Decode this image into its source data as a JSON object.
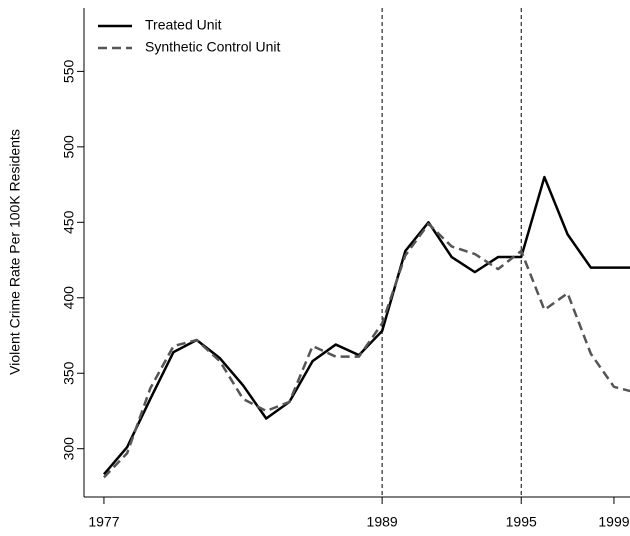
{
  "chart_data": {
    "type": "line",
    "ylabel": "Violent Crime Rate Per 100K Residents",
    "x": [
      1977,
      1978,
      1979,
      1980,
      1981,
      1982,
      1983,
      1984,
      1985,
      1986,
      1987,
      1988,
      1989,
      1990,
      1991,
      1992,
      1993,
      1994,
      1995,
      1996,
      1997,
      1998,
      1999,
      2000
    ],
    "series": [
      {
        "name": "Treated Unit",
        "color": "#000000",
        "dash": false,
        "values": [
          283,
          301,
          333,
          364,
          372,
          360,
          342,
          320,
          331,
          358,
          369,
          362,
          378,
          431,
          450,
          427,
          417,
          427,
          427,
          480,
          442,
          420,
          420,
          420
        ]
      },
      {
        "name": "Synthetic Control Unit",
        "color": "#555555",
        "dash": true,
        "values": [
          281,
          297,
          340,
          368,
          372,
          358,
          333,
          325,
          331,
          368,
          361,
          361,
          383,
          428,
          449,
          434,
          429,
          419,
          431,
          392,
          403,
          363,
          341,
          337
        ]
      }
    ],
    "vlines": [
      1989,
      1995
    ],
    "xlim": [
      1976.14,
      2000.9
    ],
    "xticks": [
      1977,
      1989,
      1995,
      1999
    ],
    "ylim": [
      268,
      592
    ],
    "yticks": [
      300,
      350,
      400,
      450,
      500,
      550
    ],
    "legend": "top-left"
  }
}
